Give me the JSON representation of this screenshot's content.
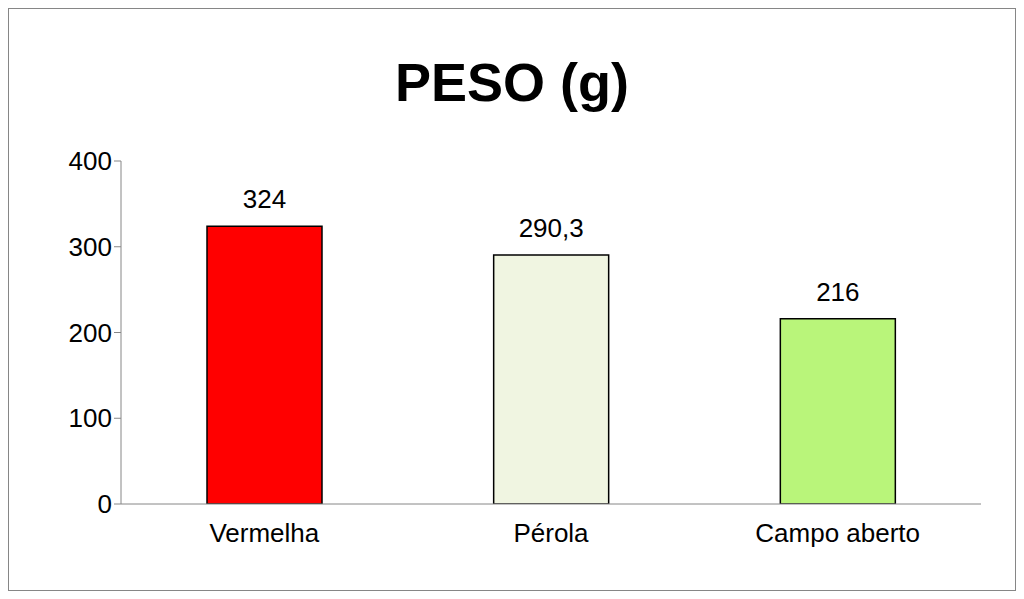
{
  "chart_data": {
    "type": "bar",
    "title": "PESO (g)",
    "categories": [
      "Vermelha",
      "Pérola",
      "Campo aberto"
    ],
    "values": [
      324,
      290.3,
      216
    ],
    "value_labels": [
      "324",
      "290,3",
      "216"
    ],
    "colors": [
      "#ff0000",
      "#f0f5e1",
      "#b9f57a"
    ],
    "ylim": [
      0,
      400
    ],
    "yticks": [
      0,
      100,
      200,
      300,
      400
    ],
    "grid": false,
    "data_labels": true
  }
}
